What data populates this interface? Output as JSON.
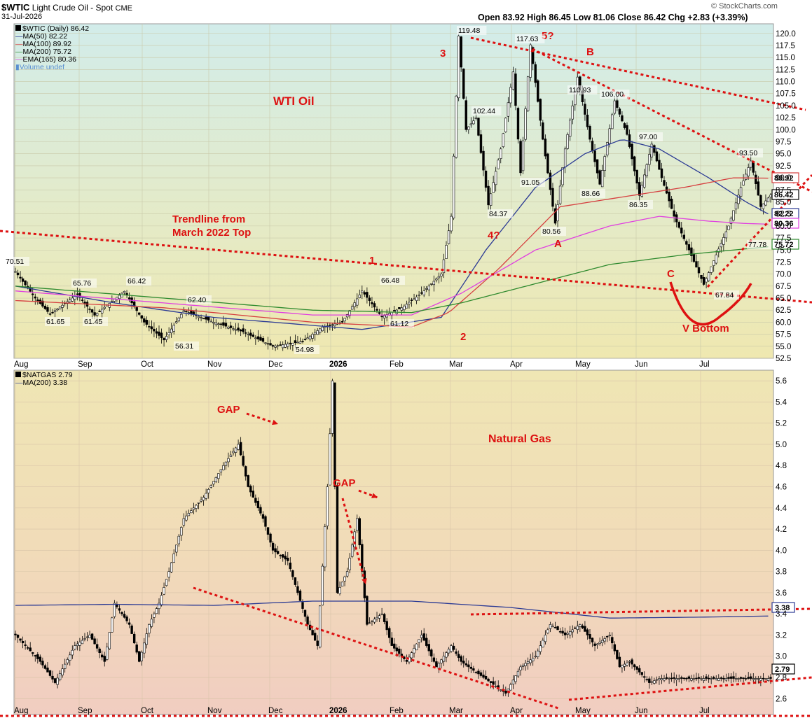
{
  "header": {
    "symbol": "$WTIC",
    "name": "Light Crude Oil - Spot",
    "exchange": "CME",
    "date": "31-Jul-2026",
    "ohlc": "Open 83.92  High 86.45  Low 81.06  Close 86.42  Chg +2.83 (+3.39%)",
    "brand": "© StockCharts.com"
  },
  "colors": {
    "panel_top": "#d4ecea",
    "panel_mid": "#eceab8",
    "panel_bottom": "#f2cfc0",
    "ma50": "#2b3a94",
    "ma100": "#d64040",
    "ma200": "#2e8a2e",
    "ema165": "#e040e0",
    "annotation": "#dd1111",
    "candle": "#000000"
  },
  "chart_data": [
    {
      "type": "candlestick",
      "title": "WTI Oil",
      "ticker": "$WTIC (Daily) 86.42",
      "legend": [
        {
          "name": "MA(50) 82.22",
          "color": "#2b3a94"
        },
        {
          "name": "MA(100) 89.92",
          "color": "#d64040"
        },
        {
          "name": "MA(200) 75.72",
          "color": "#2e8a2e"
        },
        {
          "name": "EMA(165) 80.36",
          "color": "#e040e0"
        },
        {
          "name": "Volume undef",
          "color": "#5a8fd0"
        }
      ],
      "x_labels": [
        "Aug",
        "Sep",
        "Oct",
        "Nov",
        "Dec",
        "2026",
        "Feb",
        "Mar",
        "Apr",
        "May",
        "Jun",
        "Jul"
      ],
      "ylim": [
        52.5,
        122
      ],
      "y_ticks": [
        52.5,
        55.0,
        57.5,
        60.0,
        62.5,
        65.0,
        67.5,
        70.0,
        72.5,
        75.0,
        77.5,
        80.0,
        82.5,
        85.0,
        87.5,
        90.0,
        92.5,
        95.0,
        97.5,
        100.0,
        102.5,
        105.0,
        107.5,
        110.0,
        112.5,
        115.0,
        117.5,
        120.0
      ],
      "price_keypoints": [
        [
          0,
          70.51
        ],
        [
          8,
          65
        ],
        [
          14,
          61.65
        ],
        [
          25,
          65.76
        ],
        [
          32,
          61.45
        ],
        [
          44,
          66.42
        ],
        [
          52,
          60
        ],
        [
          60,
          56.31
        ],
        [
          68,
          62.4
        ],
        [
          80,
          60
        ],
        [
          92,
          58
        ],
        [
          104,
          54.98
        ],
        [
          116,
          56
        ],
        [
          124,
          59
        ],
        [
          132,
          60
        ],
        [
          140,
          66.48
        ],
        [
          148,
          61.12
        ],
        [
          156,
          63
        ],
        [
          164,
          66
        ],
        [
          172,
          70
        ],
        [
          176,
          82
        ],
        [
          179,
          119.48
        ],
        [
          182,
          100
        ],
        [
          186,
          102.44
        ],
        [
          191,
          84.37
        ],
        [
          196,
          96
        ],
        [
          201,
          112
        ],
        [
          204,
          91.05
        ],
        [
          208,
          117.63
        ],
        [
          213,
          98
        ],
        [
          218,
          80.56
        ],
        [
          222,
          96
        ],
        [
          227,
          110.93
        ],
        [
          232,
          98
        ],
        [
          236,
          88.66
        ],
        [
          242,
          106.0
        ],
        [
          247,
          99
        ],
        [
          252,
          86.35
        ],
        [
          257,
          97.0
        ],
        [
          261,
          90
        ],
        [
          266,
          82
        ],
        [
          272,
          75
        ],
        [
          278,
          67.84
        ],
        [
          283,
          74
        ],
        [
          288,
          80
        ],
        [
          293,
          88
        ],
        [
          297,
          93.5
        ],
        [
          301,
          84
        ],
        [
          305,
          86.42
        ]
      ],
      "moving_averages": {
        "MA(50)": [
          [
            0,
            67.5
          ],
          [
            40,
            64
          ],
          [
            80,
            61
          ],
          [
            140,
            58.5
          ],
          [
            172,
            61
          ],
          [
            190,
            75
          ],
          [
            210,
            88
          ],
          [
            230,
            95
          ],
          [
            245,
            98
          ],
          [
            260,
            96
          ],
          [
            280,
            90
          ],
          [
            295,
            85
          ],
          [
            305,
            82.22
          ]
        ],
        "MA(100)": [
          [
            0,
            64.5
          ],
          [
            60,
            63
          ],
          [
            120,
            60
          ],
          [
            160,
            59
          ],
          [
            175,
            62
          ],
          [
            195,
            71
          ],
          [
            220,
            84
          ],
          [
            245,
            86
          ],
          [
            270,
            88
          ],
          [
            290,
            90
          ],
          [
            305,
            89.92
          ]
        ],
        "EMA(165)": [
          [
            0,
            66.5
          ],
          [
            60,
            64
          ],
          [
            120,
            61.5
          ],
          [
            160,
            61.5
          ],
          [
            180,
            66
          ],
          [
            210,
            75
          ],
          [
            240,
            80
          ],
          [
            260,
            82
          ],
          [
            280,
            81
          ],
          [
            295,
            80.5
          ],
          [
            305,
            80.36
          ]
        ],
        "MA(200)": [
          [
            0,
            67.5
          ],
          [
            60,
            65
          ],
          [
            120,
            62.5
          ],
          [
            160,
            62
          ],
          [
            180,
            64
          ],
          [
            210,
            68
          ],
          [
            240,
            72
          ],
          [
            270,
            74
          ],
          [
            290,
            75
          ],
          [
            305,
            75.72
          ]
        ]
      },
      "price_labels": [
        "70.51",
        "65.76",
        "66.42",
        "61.65",
        "61.45",
        "62.40",
        "56.31",
        "54.98",
        "66.48",
        "61.12",
        "119.48",
        "102.44",
        "84.37",
        "91.05",
        "117.63",
        "80.56",
        "110.93",
        "88.66",
        "106.00",
        "97.00",
        "86.35",
        "93.50",
        "67.84",
        "77.78"
      ],
      "axis_value_labels": [
        "89.92",
        "86.42",
        "82.22",
        "80.36",
        "75.72"
      ],
      "annotations": [
        "Trendline from",
        "March 2022 Top",
        "1",
        "2",
        "3",
        "4?",
        "5?",
        "A",
        "B",
        "C",
        "V Bottom"
      ]
    },
    {
      "type": "candlestick",
      "title": "Natural Gas",
      "ticker": "$NATGAS 2.79",
      "legend": [
        {
          "name": "MA(200) 3.38",
          "color": "#2b3a94"
        }
      ],
      "x_labels": [
        "Aug",
        "Sep",
        "Oct",
        "Nov",
        "Dec",
        "2026",
        "Feb",
        "Mar",
        "Apr",
        "May",
        "Jun",
        "Jul"
      ],
      "ylim": [
        2.45,
        5.7
      ],
      "y_ticks": [
        2.6,
        2.8,
        3.0,
        3.2,
        3.4,
        3.6,
        3.8,
        4.0,
        4.2,
        4.4,
        4.6,
        4.8,
        5.0,
        5.2,
        5.4,
        5.6
      ],
      "price_keypoints": [
        [
          0,
          3.2
        ],
        [
          10,
          2.95
        ],
        [
          16,
          2.75
        ],
        [
          24,
          3.1
        ],
        [
          30,
          3.2
        ],
        [
          36,
          2.95
        ],
        [
          40,
          3.5
        ],
        [
          46,
          3.3
        ],
        [
          50,
          2.95
        ],
        [
          54,
          3.3
        ],
        [
          58,
          3.5
        ],
        [
          62,
          3.8
        ],
        [
          68,
          4.3
        ],
        [
          76,
          4.5
        ],
        [
          84,
          4.8
        ],
        [
          90,
          5.0
        ],
        [
          94,
          4.6
        ],
        [
          100,
          4.3
        ],
        [
          104,
          4.0
        ],
        [
          110,
          3.9
        ],
        [
          114,
          3.6
        ],
        [
          118,
          3.3
        ],
        [
          122,
          3.1
        ],
        [
          126,
          4.6
        ],
        [
          128,
          5.6
        ],
        [
          130,
          3.6
        ],
        [
          134,
          3.8
        ],
        [
          138,
          4.3
        ],
        [
          142,
          3.3
        ],
        [
          148,
          3.4
        ],
        [
          152,
          3.1
        ],
        [
          158,
          2.95
        ],
        [
          164,
          3.2
        ],
        [
          170,
          2.9
        ],
        [
          176,
          3.1
        ],
        [
          180,
          2.95
        ],
        [
          186,
          2.85
        ],
        [
          192,
          2.75
        ],
        [
          198,
          2.65
        ],
        [
          204,
          2.9
        ],
        [
          210,
          3.0
        ],
        [
          216,
          3.3
        ],
        [
          222,
          3.2
        ],
        [
          228,
          3.3
        ],
        [
          234,
          3.1
        ],
        [
          240,
          3.2
        ],
        [
          244,
          2.9
        ],
        [
          248,
          2.95
        ],
        [
          252,
          2.85
        ],
        [
          256,
          2.75
        ],
        [
          260,
          2.79
        ],
        [
          305,
          2.79
        ]
      ],
      "moving_averages": {
        "MA(200)": [
          [
            0,
            3.48
          ],
          [
            40,
            3.49
          ],
          [
            80,
            3.48
          ],
          [
            120,
            3.52
          ],
          [
            160,
            3.52
          ],
          [
            200,
            3.46
          ],
          [
            240,
            3.36
          ],
          [
            280,
            3.37
          ],
          [
            305,
            3.38
          ]
        ]
      },
      "price_labels": [
        "2.79"
      ],
      "axis_value_labels": [
        "3.38",
        "2.79"
      ],
      "annotations": [
        "GAP",
        "GAP",
        "Natural Gas"
      ]
    }
  ]
}
